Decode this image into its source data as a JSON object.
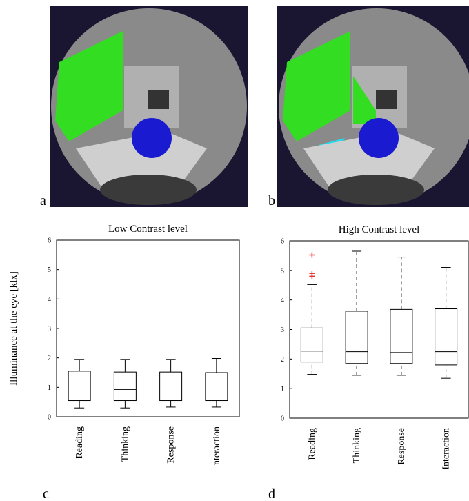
{
  "panel_labels": [
    "a",
    "b",
    "c",
    "d"
  ],
  "chart_data": [
    {
      "type": "box",
      "title": "Low Contrast level",
      "y_label": "Illuminance at the eye [klx]",
      "categories": [
        "Reading",
        "Thinking",
        "Response",
        "nteraction"
      ],
      "stats": [
        {
          "min": 0.3,
          "q1": 0.55,
          "median": 0.95,
          "q3": 1.55,
          "max": 1.95,
          "outliers": []
        },
        {
          "min": 0.3,
          "q1": 0.55,
          "median": 0.93,
          "q3": 1.52,
          "max": 1.95,
          "outliers": []
        },
        {
          "min": 0.33,
          "q1": 0.55,
          "median": 0.95,
          "q3": 1.52,
          "max": 1.95,
          "outliers": []
        },
        {
          "min": 0.33,
          "q1": 0.55,
          "median": 0.95,
          "q3": 1.5,
          "max": 1.98,
          "outliers": []
        }
      ],
      "ylim": [
        0,
        6
      ],
      "yticks": [
        0,
        1,
        2,
        3,
        4,
        5,
        6
      ],
      "color": "#000000",
      "outlier_color": "#e03030",
      "dashed_whiskers": false
    },
    {
      "type": "box",
      "title": "High Contrast level",
      "categories": [
        "Reading",
        "Thinking",
        "Response",
        "Interaction"
      ],
      "stats": [
        {
          "min": 1.48,
          "q1": 1.9,
          "median": 2.27,
          "q3": 3.05,
          "max": 4.52,
          "outliers": [
            4.8,
            4.9,
            5.52
          ]
        },
        {
          "min": 1.45,
          "q1": 1.85,
          "median": 2.25,
          "q3": 3.62,
          "max": 5.65,
          "outliers": []
        },
        {
          "min": 1.45,
          "q1": 1.85,
          "median": 2.22,
          "q3": 3.68,
          "max": 5.45,
          "outliers": []
        },
        {
          "min": 1.35,
          "q1": 1.8,
          "median": 2.25,
          "q3": 3.7,
          "max": 5.1,
          "outliers": []
        }
      ],
      "ylim": [
        0,
        6
      ],
      "yticks": [
        0,
        1,
        2,
        3,
        4,
        5,
        6
      ],
      "color": "#000000",
      "outlier_color": "#e03030",
      "dashed_whiskers": true
    }
  ]
}
